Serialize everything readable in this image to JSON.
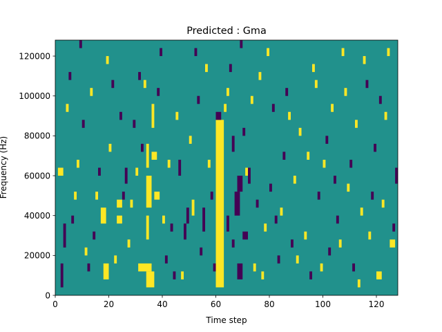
{
  "chart_data": {
    "type": "heatmap",
    "title": "Predicted : Gma",
    "xlabel": "Time step",
    "ylabel": "Frequency (Hz)",
    "xlim": [
      0,
      128
    ],
    "ylim": [
      0,
      128000
    ],
    "x_ticks": [
      0,
      20,
      40,
      60,
      80,
      100,
      120
    ],
    "x_tick_labels": [
      "0",
      "20",
      "40",
      "60",
      "80",
      "100",
      "120"
    ],
    "y_ticks": [
      0,
      20000,
      40000,
      60000,
      80000,
      100000,
      120000
    ],
    "y_tick_labels": [
      "0",
      "20000",
      "40000",
      "60000",
      "80000",
      "100000",
      "120000"
    ],
    "grid": false,
    "colors": {
      "background": "#21918c",
      "high": "#fde725",
      "low": "#440154"
    },
    "band_height_hz": 4000,
    "band_freqs_hz": [
      0,
      4000,
      8000,
      12000,
      16000,
      20000,
      24000,
      28000,
      32000,
      36000,
      40000,
      44000,
      48000,
      52000,
      56000,
      60000,
      64000,
      68000,
      72000,
      76000,
      80000,
      84000,
      88000,
      92000,
      96000,
      100000,
      104000,
      108000,
      112000,
      116000,
      120000,
      124000
    ],
    "cells": [
      {
        "t": 60,
        "f": 4000,
        "v": "high",
        "w": 3,
        "h": 84000
      },
      {
        "t": 60,
        "f": 88000,
        "v": "low",
        "w": 2,
        "h": 4000
      },
      {
        "t": 34,
        "f": 4000,
        "v": "high",
        "w": 3,
        "h": 8000
      },
      {
        "t": 31,
        "f": 12000,
        "v": "high",
        "w": 5,
        "h": 4000
      },
      {
        "t": 34,
        "f": 28000,
        "v": "high",
        "w": 1,
        "h": 12000
      },
      {
        "t": 34,
        "f": 44000,
        "v": "high",
        "w": 2,
        "h": 16000
      },
      {
        "t": 34,
        "f": 64000,
        "v": "high",
        "w": 1,
        "h": 12000
      },
      {
        "t": 36,
        "f": 68000,
        "v": "high",
        "w": 2,
        "h": 4000
      },
      {
        "t": 36,
        "f": 84000,
        "v": "high",
        "w": 1,
        "h": 12000
      },
      {
        "t": 67,
        "f": 40000,
        "v": "low",
        "w": 2,
        "h": 12000
      },
      {
        "t": 68,
        "f": 52000,
        "v": "low",
        "w": 2,
        "h": 8000
      },
      {
        "t": 64,
        "f": 32000,
        "v": "low",
        "w": 1,
        "h": 8000
      },
      {
        "t": 68,
        "f": 8000,
        "v": "low",
        "w": 2,
        "h": 8000
      },
      {
        "t": 66,
        "f": 72000,
        "v": "low",
        "w": 1,
        "h": 8000
      },
      {
        "t": 70,
        "f": 28000,
        "v": "low",
        "w": 2,
        "h": 4000
      },
      {
        "t": 72,
        "f": 56000,
        "v": "low",
        "w": 1,
        "h": 8000
      },
      {
        "t": 55,
        "f": 32000,
        "v": "low",
        "w": 1,
        "h": 12000
      },
      {
        "t": 48,
        "f": 28000,
        "v": "low",
        "w": 1,
        "h": 8000
      },
      {
        "t": 49,
        "f": 36000,
        "v": "low",
        "w": 1,
        "h": 8000
      },
      {
        "t": 3,
        "f": 24000,
        "v": "low",
        "w": 1,
        "h": 12000
      },
      {
        "t": 2,
        "f": 4000,
        "v": "low",
        "w": 1,
        "h": 12000
      },
      {
        "t": 1,
        "f": 60000,
        "v": "high",
        "w": 2,
        "h": 4000
      },
      {
        "t": 18,
        "f": 8000,
        "v": "high",
        "w": 2,
        "h": 8000
      },
      {
        "t": 17,
        "f": 36000,
        "v": "high",
        "w": 2,
        "h": 8000
      },
      {
        "t": 23,
        "f": 36000,
        "v": "high",
        "w": 2,
        "h": 4000
      },
      {
        "t": 23,
        "f": 44000,
        "v": "high",
        "w": 2,
        "h": 4000
      },
      {
        "t": 37,
        "f": 48000,
        "v": "high",
        "w": 2,
        "h": 4000
      },
      {
        "t": 127,
        "f": 56000,
        "v": "low",
        "w": 1,
        "h": 8000
      },
      {
        "t": 125,
        "f": 24000,
        "v": "high",
        "w": 2,
        "h": 4000
      },
      {
        "t": 120,
        "f": 8000,
        "v": "high",
        "w": 2,
        "h": 4000
      },
      {
        "t": 8,
        "f": 64000,
        "v": "high",
        "w": 1,
        "h": 4000
      },
      {
        "t": 12,
        "f": 12000,
        "v": "low",
        "w": 1,
        "h": 4000
      },
      {
        "t": 15,
        "f": 48000,
        "v": "high",
        "w": 1,
        "h": 4000
      },
      {
        "t": 20,
        "f": 72000,
        "v": "high",
        "w": 1,
        "h": 4000
      },
      {
        "t": 22,
        "f": 16000,
        "v": "high",
        "w": 1,
        "h": 4000
      },
      {
        "t": 26,
        "f": 56000,
        "v": "low",
        "w": 1,
        "h": 8000
      },
      {
        "t": 28,
        "f": 44000,
        "v": "high",
        "w": 1,
        "h": 4000
      },
      {
        "t": 29,
        "f": 84000,
        "v": "low",
        "w": 1,
        "h": 4000
      },
      {
        "t": 31,
        "f": 108000,
        "v": "low",
        "w": 1,
        "h": 4000
      },
      {
        "t": 33,
        "f": 104000,
        "v": "high",
        "w": 1,
        "h": 4000
      },
      {
        "t": 38,
        "f": 100000,
        "v": "low",
        "w": 1,
        "h": 4000
      },
      {
        "t": 40,
        "f": 36000,
        "v": "high",
        "w": 1,
        "h": 4000
      },
      {
        "t": 42,
        "f": 64000,
        "v": "high",
        "w": 1,
        "h": 4000
      },
      {
        "t": 43,
        "f": 32000,
        "v": "low",
        "w": 1,
        "h": 4000
      },
      {
        "t": 44,
        "f": 8000,
        "v": "low",
        "w": 1,
        "h": 4000
      },
      {
        "t": 46,
        "f": 60000,
        "v": "low",
        "w": 1,
        "h": 8000
      },
      {
        "t": 50,
        "f": 76000,
        "v": "high",
        "w": 1,
        "h": 4000
      },
      {
        "t": 51,
        "f": 40000,
        "v": "high",
        "w": 1,
        "h": 8000
      },
      {
        "t": 52,
        "f": 120000,
        "v": "low",
        "w": 1,
        "h": 4000
      },
      {
        "t": 54,
        "f": 20000,
        "v": "low",
        "w": 1,
        "h": 4000
      },
      {
        "t": 56,
        "f": 112000,
        "v": "high",
        "w": 1,
        "h": 4000
      },
      {
        "t": 57,
        "f": 64000,
        "v": "high",
        "w": 1,
        "h": 4000
      },
      {
        "t": 58,
        "f": 48000,
        "v": "low",
        "w": 1,
        "h": 4000
      },
      {
        "t": 63,
        "f": 92000,
        "v": "high",
        "w": 1,
        "h": 4000
      },
      {
        "t": 64,
        "f": 100000,
        "v": "high",
        "w": 1,
        "h": 4000
      },
      {
        "t": 66,
        "f": 24000,
        "v": "low",
        "w": 1,
        "h": 4000
      },
      {
        "t": 69,
        "f": 124000,
        "v": "low",
        "w": 1,
        "h": 4000
      },
      {
        "t": 70,
        "f": 80000,
        "v": "low",
        "w": 1,
        "h": 4000
      },
      {
        "t": 74,
        "f": 12000,
        "v": "high",
        "w": 1,
        "h": 4000
      },
      {
        "t": 75,
        "f": 44000,
        "v": "low",
        "w": 1,
        "h": 4000
      },
      {
        "t": 76,
        "f": 108000,
        "v": "high",
        "w": 1,
        "h": 4000
      },
      {
        "t": 78,
        "f": 32000,
        "v": "high",
        "w": 1,
        "h": 4000
      },
      {
        "t": 80,
        "f": 52000,
        "v": "low",
        "w": 1,
        "h": 4000
      },
      {
        "t": 81,
        "f": 92000,
        "v": "low",
        "w": 1,
        "h": 4000
      },
      {
        "t": 83,
        "f": 16000,
        "v": "low",
        "w": 1,
        "h": 4000
      },
      {
        "t": 84,
        "f": 40000,
        "v": "high",
        "w": 1,
        "h": 4000
      },
      {
        "t": 85,
        "f": 68000,
        "v": "low",
        "w": 1,
        "h": 4000
      },
      {
        "t": 86,
        "f": 100000,
        "v": "low",
        "w": 1,
        "h": 4000
      },
      {
        "t": 88,
        "f": 24000,
        "v": "low",
        "w": 1,
        "h": 4000
      },
      {
        "t": 89,
        "f": 56000,
        "v": "high",
        "w": 1,
        "h": 4000
      },
      {
        "t": 91,
        "f": 80000,
        "v": "high",
        "w": 1,
        "h": 4000
      },
      {
        "t": 93,
        "f": 28000,
        "v": "high",
        "w": 1,
        "h": 4000
      },
      {
        "t": 95,
        "f": 8000,
        "v": "low",
        "w": 1,
        "h": 4000
      },
      {
        "t": 96,
        "f": 112000,
        "v": "high",
        "w": 1,
        "h": 4000
      },
      {
        "t": 98,
        "f": 48000,
        "v": "low",
        "w": 1,
        "h": 4000
      },
      {
        "t": 100,
        "f": 64000,
        "v": "high",
        "w": 1,
        "h": 4000
      },
      {
        "t": 102,
        "f": 20000,
        "v": "low",
        "w": 1,
        "h": 4000
      },
      {
        "t": 103,
        "f": 92000,
        "v": "high",
        "w": 1,
        "h": 4000
      },
      {
        "t": 105,
        "f": 36000,
        "v": "low",
        "w": 1,
        "h": 4000
      },
      {
        "t": 107,
        "f": 120000,
        "v": "high",
        "w": 1,
        "h": 4000
      },
      {
        "t": 109,
        "f": 52000,
        "v": "high",
        "w": 1,
        "h": 4000
      },
      {
        "t": 111,
        "f": 12000,
        "v": "low",
        "w": 1,
        "h": 4000
      },
      {
        "t": 112,
        "f": 84000,
        "v": "high",
        "w": 1,
        "h": 4000
      },
      {
        "t": 114,
        "f": 40000,
        "v": "high",
        "w": 1,
        "h": 4000
      },
      {
        "t": 116,
        "f": 104000,
        "v": "low",
        "w": 1,
        "h": 4000
      },
      {
        "t": 117,
        "f": 28000,
        "v": "high",
        "w": 1,
        "h": 4000
      },
      {
        "t": 119,
        "f": 72000,
        "v": "low",
        "w": 1,
        "h": 4000
      },
      {
        "t": 121,
        "f": 96000,
        "v": "low",
        "w": 1,
        "h": 4000
      },
      {
        "t": 122,
        "f": 44000,
        "v": "high",
        "w": 1,
        "h": 4000
      },
      {
        "t": 124,
        "f": 120000,
        "v": "high",
        "w": 1,
        "h": 4000
      },
      {
        "t": 126,
        "f": 32000,
        "v": "low",
        "w": 1,
        "h": 4000
      },
      {
        "t": 4,
        "f": 92000,
        "v": "high",
        "w": 1,
        "h": 4000
      },
      {
        "t": 6,
        "f": 36000,
        "v": "low",
        "w": 1,
        "h": 4000
      },
      {
        "t": 9,
        "f": 124000,
        "v": "low",
        "w": 1,
        "h": 4000
      },
      {
        "t": 11,
        "f": 20000,
        "v": "high",
        "w": 1,
        "h": 4000
      },
      {
        "t": 13,
        "f": 100000,
        "v": "high",
        "w": 1,
        "h": 4000
      },
      {
        "t": 16,
        "f": 60000,
        "v": "low",
        "w": 1,
        "h": 4000
      },
      {
        "t": 19,
        "f": 116000,
        "v": "high",
        "w": 1,
        "h": 4000
      },
      {
        "t": 24,
        "f": 88000,
        "v": "low",
        "w": 1,
        "h": 4000
      },
      {
        "t": 27,
        "f": 24000,
        "v": "high",
        "w": 1,
        "h": 4000
      },
      {
        "t": 30,
        "f": 60000,
        "v": "high",
        "w": 1,
        "h": 4000
      },
      {
        "t": 32,
        "f": 72000,
        "v": "low",
        "w": 1,
        "h": 4000
      },
      {
        "t": 39,
        "f": 120000,
        "v": "low",
        "w": 1,
        "h": 4000
      },
      {
        "t": 41,
        "f": 16000,
        "v": "low",
        "w": 1,
        "h": 4000
      },
      {
        "t": 45,
        "f": 88000,
        "v": "high",
        "w": 1,
        "h": 4000
      },
      {
        "t": 47,
        "f": 8000,
        "v": "high",
        "w": 1,
        "h": 4000
      },
      {
        "t": 53,
        "f": 96000,
        "v": "low",
        "w": 1,
        "h": 4000
      },
      {
        "t": 59,
        "f": 12000,
        "v": "low",
        "w": 1,
        "h": 4000
      },
      {
        "t": 65,
        "f": 112000,
        "v": "low",
        "w": 1,
        "h": 4000
      },
      {
        "t": 71,
        "f": 60000,
        "v": "high",
        "w": 1,
        "h": 4000
      },
      {
        "t": 73,
        "f": 96000,
        "v": "high",
        "w": 1,
        "h": 4000
      },
      {
        "t": 77,
        "f": 8000,
        "v": "high",
        "w": 1,
        "h": 4000
      },
      {
        "t": 79,
        "f": 120000,
        "v": "high",
        "w": 1,
        "h": 4000
      },
      {
        "t": 82,
        "f": 36000,
        "v": "low",
        "w": 1,
        "h": 4000
      },
      {
        "t": 87,
        "f": 88000,
        "v": "high",
        "w": 1,
        "h": 4000
      },
      {
        "t": 90,
        "f": 16000,
        "v": "high",
        "w": 1,
        "h": 4000
      },
      {
        "t": 94,
        "f": 68000,
        "v": "high",
        "w": 1,
        "h": 4000
      },
      {
        "t": 97,
        "f": 104000,
        "v": "high",
        "w": 1,
        "h": 4000
      },
      {
        "t": 99,
        "f": 12000,
        "v": "high",
        "w": 1,
        "h": 4000
      },
      {
        "t": 101,
        "f": 76000,
        "v": "low",
        "w": 1,
        "h": 4000
      },
      {
        "t": 104,
        "f": 56000,
        "v": "low",
        "w": 1,
        "h": 4000
      },
      {
        "t": 106,
        "f": 24000,
        "v": "high",
        "w": 1,
        "h": 4000
      },
      {
        "t": 108,
        "f": 100000,
        "v": "high",
        "w": 1,
        "h": 4000
      },
      {
        "t": 110,
        "f": 64000,
        "v": "low",
        "w": 1,
        "h": 4000
      },
      {
        "t": 113,
        "f": 4000,
        "v": "high",
        "w": 1,
        "h": 4000
      },
      {
        "t": 115,
        "f": 116000,
        "v": "high",
        "w": 1,
        "h": 4000
      },
      {
        "t": 118,
        "f": 48000,
        "v": "low",
        "w": 1,
        "h": 4000
      },
      {
        "t": 123,
        "f": 88000,
        "v": "high",
        "w": 1,
        "h": 4000
      },
      {
        "t": 5,
        "f": 108000,
        "v": "low",
        "w": 1,
        "h": 4000
      },
      {
        "t": 7,
        "f": 48000,
        "v": "high",
        "w": 1,
        "h": 4000
      },
      {
        "t": 10,
        "f": 84000,
        "v": "low",
        "w": 1,
        "h": 4000
      },
      {
        "t": 14,
        "f": 28000,
        "v": "low",
        "w": 1,
        "h": 4000
      },
      {
        "t": 21,
        "f": 104000,
        "v": "low",
        "w": 1,
        "h": 4000
      },
      {
        "t": 25,
        "f": 48000,
        "v": "low",
        "w": 1,
        "h": 4000
      }
    ]
  }
}
